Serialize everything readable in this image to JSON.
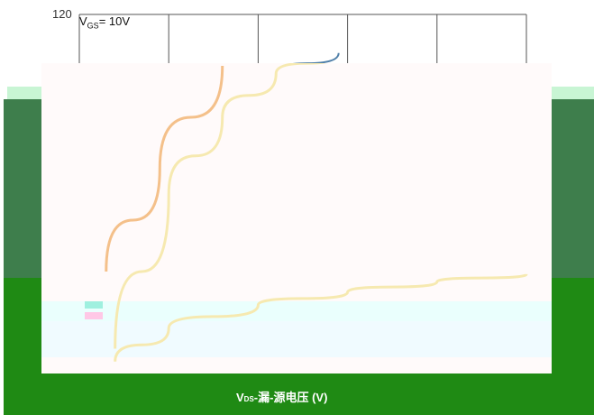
{
  "chart_data": {
    "type": "line",
    "y_tick_top": "120",
    "annotation": "V_GS= 10V",
    "annotation_main": "V",
    "annotation_sub": "GS",
    "annotation_rest": "= 10V",
    "xlabel_main": "V",
    "xlabel_sub": "DS",
    "xlabel_rest": "-漏-源电压 (V)",
    "grid": true,
    "series": [
      {
        "color": "#b0703a",
        "faded_color": "#f4c08a",
        "points": [
          [
            0.3,
            40
          ],
          [
            0.9,
            80
          ],
          [
            1.6,
            120
          ]
        ]
      },
      {
        "color": "#4f7fa8",
        "faded_color": "#f6e9b0",
        "points": [
          [
            0.4,
            10
          ],
          [
            1.0,
            70
          ],
          [
            1.6,
            100
          ],
          [
            2.2,
            117
          ],
          [
            2.9,
            125
          ]
        ]
      },
      {
        "color": "#f6e9b0",
        "points": [
          [
            0.4,
            5
          ],
          [
            1.0,
            18
          ],
          [
            2.0,
            27
          ],
          [
            3.0,
            32
          ],
          [
            4.0,
            36
          ],
          [
            5.0,
            39
          ]
        ]
      }
    ]
  },
  "colors": {
    "grid": "#555555",
    "band_mid": "#3e7e4c",
    "band_low": "#1f8a14"
  }
}
